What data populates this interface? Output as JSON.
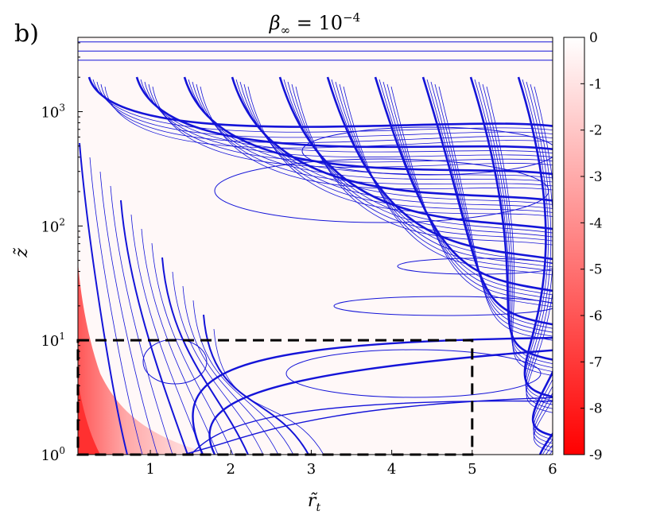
{
  "panel_label": "b)",
  "chart_data": {
    "type": "contour",
    "title": "β∞ = 10−4",
    "title_parts": {
      "base": "β",
      "sub": "∞",
      "rel": " = 10",
      "sup": "−4"
    },
    "xlabel": "r̃t",
    "xlabel_parts": {
      "base": "r̃",
      "sub": "t"
    },
    "ylabel": "z̃",
    "xlim": [
      0.1,
      6
    ],
    "ylim_log10": [
      0,
      3.65
    ],
    "yscale": "log",
    "x_ticks": [
      "1",
      "2",
      "3",
      "4",
      "5",
      "6"
    ],
    "x_tick_values": [
      1,
      2,
      3,
      4,
      5,
      6
    ],
    "y_ticks": [
      {
        "base": "10",
        "exp": "0",
        "value": 0
      },
      {
        "base": "10",
        "exp": "1",
        "value": 1
      },
      {
        "base": "10",
        "exp": "2",
        "value": 2
      },
      {
        "base": "10",
        "exp": "3",
        "value": 3
      }
    ],
    "colorbar": {
      "min": -9,
      "max": 0,
      "ticks": [
        "0",
        "-1",
        "-2",
        "-3",
        "-4",
        "-5",
        "-6",
        "-7",
        "-8",
        "-9"
      ],
      "tick_values": [
        0,
        -1,
        -2,
        -3,
        -4,
        -5,
        -6,
        -7,
        -8,
        -9
      ],
      "colors": {
        "high": "#ffffff",
        "low": "#ff0000"
      }
    },
    "contour_color": "#1414d8",
    "highlight_box": {
      "x": [
        0.1,
        5
      ],
      "z": [
        1,
        10
      ],
      "style": "dashed",
      "color": "#000000"
    },
    "horizontal_lines_log10_z": [
      3.45,
      3.53,
      3.61
    ],
    "grid": false,
    "legend": "none"
  }
}
